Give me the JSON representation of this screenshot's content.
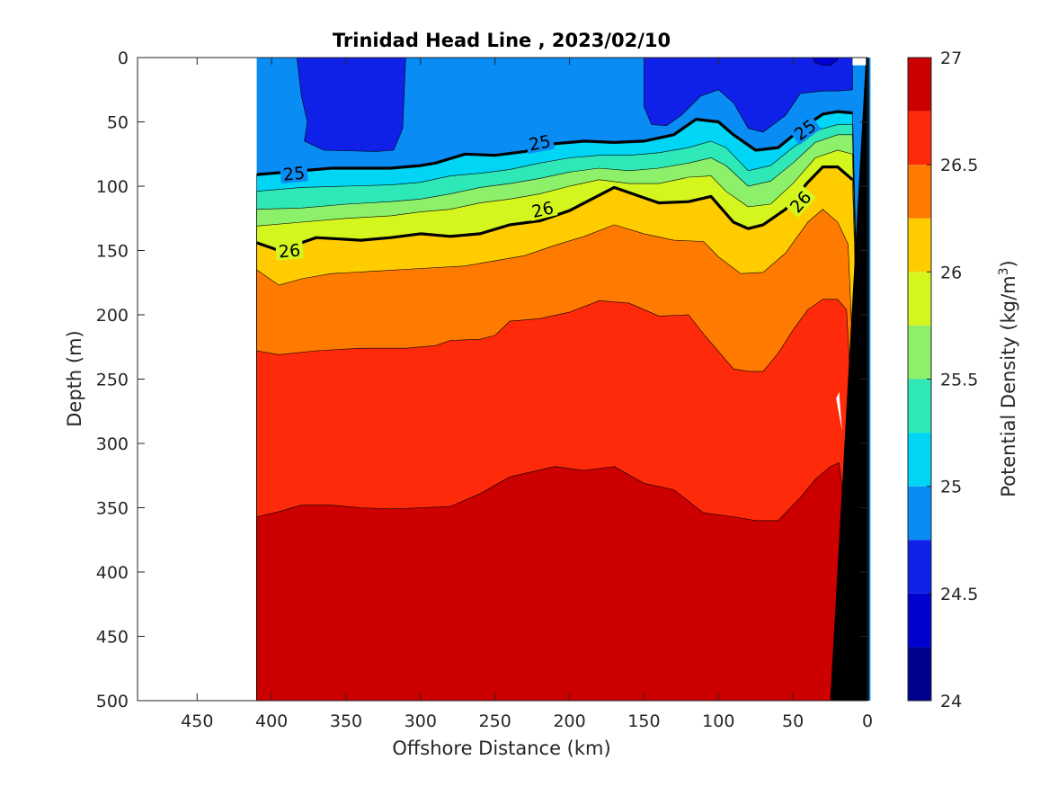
{
  "chart_data": {
    "type": "contour",
    "title": "Trinidad Head Line , 2023/02/10",
    "xlabel": "Offshore Distance (km)",
    "ylabel": "Depth (m)",
    "xlim": [
      490,
      0
    ],
    "ylim": [
      0,
      500
    ],
    "x_reversed": true,
    "y_reversed": true,
    "xticks": [
      450,
      400,
      350,
      300,
      250,
      200,
      150,
      100,
      50,
      0
    ],
    "yticks": [
      0,
      50,
      100,
      150,
      200,
      250,
      300,
      350,
      400,
      450,
      500
    ],
    "grid": false,
    "data_extent_km": [
      410,
      10
    ],
    "colorbar": {
      "label_main": "Potential Density (kg/m",
      "label_sup": "3",
      "label_end": ")",
      "range": [
        24,
        27
      ],
      "levels": [
        24,
        24.25,
        24.5,
        24.75,
        25,
        25.25,
        25.5,
        25.75,
        26,
        26.25,
        26.5,
        26.75,
        27
      ],
      "colors": [
        "#00008f",
        "#0000cf",
        "#0f20e8",
        "#0a8cf5",
        "#00d5f5",
        "#2ee8b8",
        "#8cf06a",
        "#d4f51e",
        "#ffcc00",
        "#ff7a00",
        "#ff2a0a",
        "#cc0000"
      ],
      "tick_values": [
        24,
        24.5,
        25,
        25.5,
        26,
        26.5,
        27
      ],
      "tick_labels": [
        "24",
        "24.5",
        "25",
        "25.5",
        "26",
        "26.5",
        "27"
      ]
    },
    "contour_isolines": [
      {
        "level": 25.0,
        "label": "25",
        "points": [
          [
            410,
            91
          ],
          [
            390,
            89
          ],
          [
            360,
            86
          ],
          [
            340,
            86
          ],
          [
            320,
            86
          ],
          [
            300,
            84
          ],
          [
            290,
            82
          ],
          [
            270,
            75
          ],
          [
            250,
            76
          ],
          [
            230,
            73
          ],
          [
            210,
            67
          ],
          [
            190,
            65
          ],
          [
            170,
            66
          ],
          [
            150,
            65
          ],
          [
            130,
            60
          ],
          [
            115,
            48
          ],
          [
            100,
            50
          ],
          [
            90,
            60
          ],
          [
            75,
            72
          ],
          [
            60,
            70
          ],
          [
            45,
            56
          ],
          [
            30,
            44
          ],
          [
            20,
            42
          ],
          [
            10,
            43
          ]
        ],
        "label_positions": [
          [
            385,
            90
          ],
          [
            220,
            66
          ],
          [
            42,
            56
          ]
        ]
      },
      {
        "level": 26.0,
        "label": "26",
        "points": [
          [
            410,
            144
          ],
          [
            395,
            150
          ],
          [
            370,
            140
          ],
          [
            340,
            142
          ],
          [
            320,
            140
          ],
          [
            300,
            137
          ],
          [
            280,
            139
          ],
          [
            260,
            137
          ],
          [
            240,
            130
          ],
          [
            220,
            127
          ],
          [
            200,
            119
          ],
          [
            185,
            110
          ],
          [
            170,
            101
          ],
          [
            155,
            107
          ],
          [
            140,
            113
          ],
          [
            120,
            112
          ],
          [
            105,
            108
          ],
          [
            90,
            128
          ],
          [
            80,
            133
          ],
          [
            70,
            130
          ],
          [
            55,
            118
          ],
          [
            40,
            97
          ],
          [
            30,
            85
          ],
          [
            20,
            85
          ],
          [
            10,
            95
          ]
        ],
        "label_positions": [
          [
            388,
            150
          ],
          [
            218,
            118
          ],
          [
            45,
            112
          ]
        ]
      }
    ],
    "density_bands": [
      {
        "name": "24.75-25.0 lower",
        "lo": 24.75,
        "hi": 25.0
      },
      {
        "name": "25.0-25.25",
        "lo": 25.0,
        "hi": 25.25
      },
      {
        "name": "25.25-25.5",
        "lo": 25.25,
        "hi": 25.5
      },
      {
        "name": "25.5-25.75",
        "lo": 25.5,
        "hi": 25.75
      },
      {
        "name": "25.75-26.0",
        "lo": 25.75,
        "hi": 26.0
      },
      {
        "name": "26.0-26.25",
        "lo": 26.0,
        "hi": 26.25
      },
      {
        "name": "26.25-26.5",
        "lo": 26.25,
        "hi": 26.5
      },
      {
        "name": "26.5-26.75",
        "lo": 26.5,
        "hi": 26.75
      },
      {
        "name": "26.75-27.0",
        "lo": 26.75,
        "hi": 27.0
      }
    ],
    "boundaries": {
      "b_25_0": [
        [
          410,
          91
        ],
        [
          390,
          89
        ],
        [
          360,
          86
        ],
        [
          340,
          86
        ],
        [
          320,
          86
        ],
        [
          300,
          84
        ],
        [
          290,
          82
        ],
        [
          270,
          75
        ],
        [
          250,
          76
        ],
        [
          230,
          73
        ],
        [
          210,
          67
        ],
        [
          190,
          65
        ],
        [
          170,
          66
        ],
        [
          150,
          65
        ],
        [
          130,
          60
        ],
        [
          115,
          48
        ],
        [
          100,
          50
        ],
        [
          90,
          60
        ],
        [
          75,
          72
        ],
        [
          60,
          70
        ],
        [
          45,
          56
        ],
        [
          30,
          44
        ],
        [
          20,
          42
        ],
        [
          10,
          43
        ]
      ],
      "b_25_25": [
        [
          410,
          104
        ],
        [
          380,
          101
        ],
        [
          350,
          100
        ],
        [
          320,
          99
        ],
        [
          300,
          97
        ],
        [
          280,
          92
        ],
        [
          260,
          90
        ],
        [
          240,
          87
        ],
        [
          220,
          82
        ],
        [
          200,
          78
        ],
        [
          180,
          76
        ],
        [
          160,
          76
        ],
        [
          140,
          74
        ],
        [
          120,
          70
        ],
        [
          105,
          65
        ],
        [
          95,
          70
        ],
        [
          80,
          88
        ],
        [
          65,
          84
        ],
        [
          50,
          70
        ],
        [
          35,
          57
        ],
        [
          20,
          52
        ],
        [
          10,
          52
        ]
      ],
      "b_25_5": [
        [
          410,
          118
        ],
        [
          380,
          117
        ],
        [
          350,
          114
        ],
        [
          320,
          112
        ],
        [
          300,
          110
        ],
        [
          280,
          106
        ],
        [
          260,
          101
        ],
        [
          240,
          98
        ],
        [
          220,
          94
        ],
        [
          200,
          89
        ],
        [
          180,
          86
        ],
        [
          160,
          88
        ],
        [
          140,
          86
        ],
        [
          120,
          82
        ],
        [
          105,
          78
        ],
        [
          95,
          84
        ],
        [
          80,
          100
        ],
        [
          65,
          96
        ],
        [
          50,
          82
        ],
        [
          35,
          66
        ],
        [
          20,
          60
        ],
        [
          10,
          60
        ]
      ],
      "b_25_75": [
        [
          410,
          131
        ],
        [
          380,
          128
        ],
        [
          350,
          125
        ],
        [
          320,
          123
        ],
        [
          300,
          120
        ],
        [
          280,
          118
        ],
        [
          260,
          113
        ],
        [
          240,
          110
        ],
        [
          220,
          106
        ],
        [
          200,
          100
        ],
        [
          180,
          95
        ],
        [
          160,
          98
        ],
        [
          140,
          98
        ],
        [
          120,
          93
        ],
        [
          105,
          92
        ],
        [
          95,
          104
        ],
        [
          80,
          116
        ],
        [
          65,
          114
        ],
        [
          50,
          98
        ],
        [
          35,
          78
        ],
        [
          20,
          72
        ],
        [
          10,
          75
        ]
      ],
      "b_26_0": [
        [
          410,
          144
        ],
        [
          395,
          150
        ],
        [
          370,
          140
        ],
        [
          340,
          142
        ],
        [
          320,
          140
        ],
        [
          300,
          137
        ],
        [
          280,
          139
        ],
        [
          260,
          137
        ],
        [
          240,
          130
        ],
        [
          220,
          127
        ],
        [
          200,
          119
        ],
        [
          185,
          110
        ],
        [
          170,
          101
        ],
        [
          155,
          107
        ],
        [
          140,
          113
        ],
        [
          120,
          112
        ],
        [
          105,
          108
        ],
        [
          90,
          128
        ],
        [
          80,
          133
        ],
        [
          70,
          130
        ],
        [
          55,
          118
        ],
        [
          40,
          97
        ],
        [
          30,
          85
        ],
        [
          20,
          85
        ],
        [
          10,
          95
        ]
      ],
      "b_26_25": [
        [
          410,
          165
        ],
        [
          395,
          177
        ],
        [
          380,
          172
        ],
        [
          360,
          168
        ],
        [
          330,
          166
        ],
        [
          300,
          164
        ],
        [
          270,
          162
        ],
        [
          250,
          158
        ],
        [
          230,
          154
        ],
        [
          210,
          146
        ],
        [
          190,
          139
        ],
        [
          170,
          130
        ],
        [
          150,
          137
        ],
        [
          130,
          142
        ],
        [
          110,
          143
        ],
        [
          100,
          155
        ],
        [
          85,
          168
        ],
        [
          70,
          167
        ],
        [
          55,
          152
        ],
        [
          40,
          128
        ],
        [
          30,
          118
        ],
        [
          20,
          128
        ],
        [
          13,
          145
        ]
      ],
      "b_26_5": [
        [
          410,
          228
        ],
        [
          395,
          231
        ],
        [
          370,
          228
        ],
        [
          340,
          226
        ],
        [
          310,
          226
        ],
        [
          290,
          224
        ],
        [
          280,
          220
        ],
        [
          260,
          219
        ],
        [
          250,
          216
        ],
        [
          240,
          205
        ],
        [
          220,
          203
        ],
        [
          200,
          198
        ],
        [
          180,
          189
        ],
        [
          160,
          191
        ],
        [
          140,
          201
        ],
        [
          120,
          200
        ],
        [
          110,
          215
        ],
        [
          90,
          242
        ],
        [
          80,
          244
        ],
        [
          70,
          244
        ],
        [
          60,
          230
        ],
        [
          50,
          212
        ],
        [
          40,
          196
        ],
        [
          30,
          188
        ],
        [
          20,
          188
        ],
        [
          14,
          196
        ]
      ],
      "b_26_75": [
        [
          410,
          357
        ],
        [
          395,
          353
        ],
        [
          380,
          348
        ],
        [
          360,
          348
        ],
        [
          340,
          350
        ],
        [
          320,
          351
        ],
        [
          300,
          350
        ],
        [
          280,
          349
        ],
        [
          260,
          339
        ],
        [
          240,
          326
        ],
        [
          210,
          318
        ],
        [
          190,
          321
        ],
        [
          170,
          318
        ],
        [
          150,
          331
        ],
        [
          130,
          336
        ],
        [
          110,
          354
        ],
        [
          90,
          357
        ],
        [
          75,
          360
        ],
        [
          60,
          360
        ],
        [
          45,
          342
        ],
        [
          35,
          328
        ],
        [
          25,
          318
        ],
        [
          19,
          315
        ]
      ]
    },
    "low_density_patches": [
      {
        "name": "24.5-24.75 patch offshore",
        "lo": 24.5,
        "hi": 24.75,
        "points": [
          [
            383,
            0
          ],
          [
            380,
            30
          ],
          [
            376,
            50
          ],
          [
            378,
            65
          ],
          [
            365,
            72
          ],
          [
            330,
            73
          ],
          [
            318,
            72
          ],
          [
            312,
            55
          ],
          [
            310,
            0
          ]
        ]
      },
      {
        "name": "24.5-24.75 patch nearshore",
        "lo": 24.5,
        "hi": 24.75,
        "points": [
          [
            150,
            0
          ],
          [
            150,
            38
          ],
          [
            145,
            52
          ],
          [
            135,
            53
          ],
          [
            125,
            45
          ],
          [
            112,
            30
          ],
          [
            100,
            25
          ],
          [
            90,
            35
          ],
          [
            80,
            55
          ],
          [
            70,
            58
          ],
          [
            55,
            45
          ],
          [
            45,
            28
          ],
          [
            30,
            26
          ],
          [
            20,
            26
          ],
          [
            10,
            25
          ],
          [
            10,
            0
          ]
        ]
      },
      {
        "name": "24.25-24.5 patch",
        "lo": 24.25,
        "hi": 24.5,
        "points": [
          [
            37,
            0
          ],
          [
            35,
            4
          ],
          [
            30,
            6
          ],
          [
            25,
            6
          ],
          [
            20,
            2
          ],
          [
            20,
            0
          ]
        ]
      }
    ],
    "bathymetry": {
      "color": "#000000",
      "points": [
        [
          -1,
          0
        ],
        [
          1,
          0
        ],
        [
          25,
          500
        ],
        [
          -1,
          500
        ]
      ],
      "gap": [
        [
          21,
          265
        ],
        [
          19,
          260
        ],
        [
          17,
          290
        ]
      ]
    }
  }
}
